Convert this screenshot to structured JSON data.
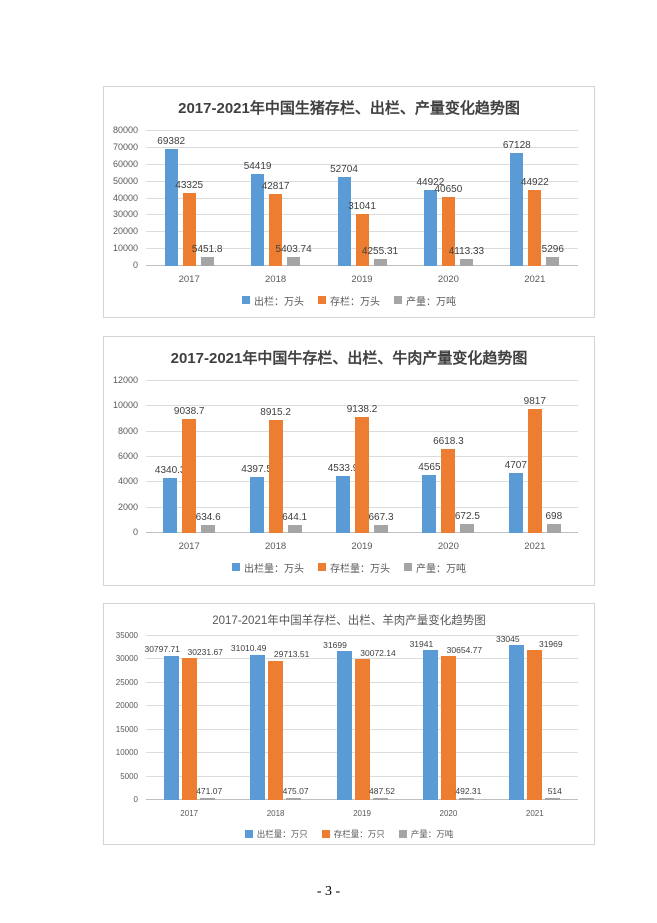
{
  "page": {
    "footer_page_number": "- 3 -"
  },
  "chart_data": [
    {
      "type": "bar",
      "title": "2017-2021年中国生猪存栏、出栏、产量变化趋势图",
      "categories": [
        "2017",
        "2018",
        "2019",
        "2020",
        "2021"
      ],
      "series": [
        {
          "name": "出栏：万头",
          "color": "#5B9BD5",
          "values": [
            69382,
            54419,
            52704,
            44922,
            67128
          ]
        },
        {
          "name": "存栏：万头",
          "color": "#ED7D31",
          "values": [
            43325,
            42817,
            31041,
            40650,
            44922
          ]
        },
        {
          "name": "产量：万吨",
          "color": "#A5A5A5",
          "values": [
            5451.8,
            5403.74,
            4255.31,
            4113.33,
            5296
          ]
        }
      ],
      "xlabel": "",
      "ylabel": "",
      "ylim": [
        0,
        80000
      ],
      "ytick_step": 10000,
      "grid": true,
      "legend_position": "bottom"
    },
    {
      "type": "bar",
      "title": "2017-2021年中国牛存栏、出栏、牛肉产量变化趋势图",
      "categories": [
        "2017",
        "2018",
        "2019",
        "2020",
        "2021"
      ],
      "series": [
        {
          "name": "出栏量：万头",
          "color": "#5B9BD5",
          "values": [
            4340.3,
            4397.5,
            4533.9,
            4565,
            4707
          ]
        },
        {
          "name": "存栏量：万头",
          "color": "#ED7D31",
          "values": [
            9038.7,
            8915.2,
            9138.2,
            6618.3,
            9817
          ]
        },
        {
          "name": "产量：万吨",
          "color": "#A5A5A5",
          "values": [
            634.6,
            644.1,
            667.3,
            672.5,
            698
          ]
        }
      ],
      "xlabel": "",
      "ylabel": "",
      "ylim": [
        0,
        12000
      ],
      "ytick_step": 2000,
      "grid": true,
      "legend_position": "bottom"
    },
    {
      "type": "bar",
      "title": "2017-2021年中国羊存栏、出栏、羊肉产量变化趋势图",
      "categories": [
        "2017",
        "2018",
        "2019",
        "2020",
        "2021"
      ],
      "series": [
        {
          "name": "出栏量：万只",
          "color": "#5B9BD5",
          "values": [
            30797.71,
            31010.49,
            31699,
            31941,
            33045
          ]
        },
        {
          "name": "存栏量：万只",
          "color": "#ED7D31",
          "values": [
            30231.67,
            29713.51,
            30072.14,
            30654.77,
            31969
          ]
        },
        {
          "name": "产量：万吨",
          "color": "#A5A5A5",
          "values": [
            471.07,
            475.07,
            487.52,
            492.31,
            514
          ]
        }
      ],
      "xlabel": "",
      "ylabel": "",
      "ylim": [
        0,
        35000
      ],
      "ytick_step": 5000,
      "grid": true,
      "legend_position": "bottom"
    }
  ]
}
